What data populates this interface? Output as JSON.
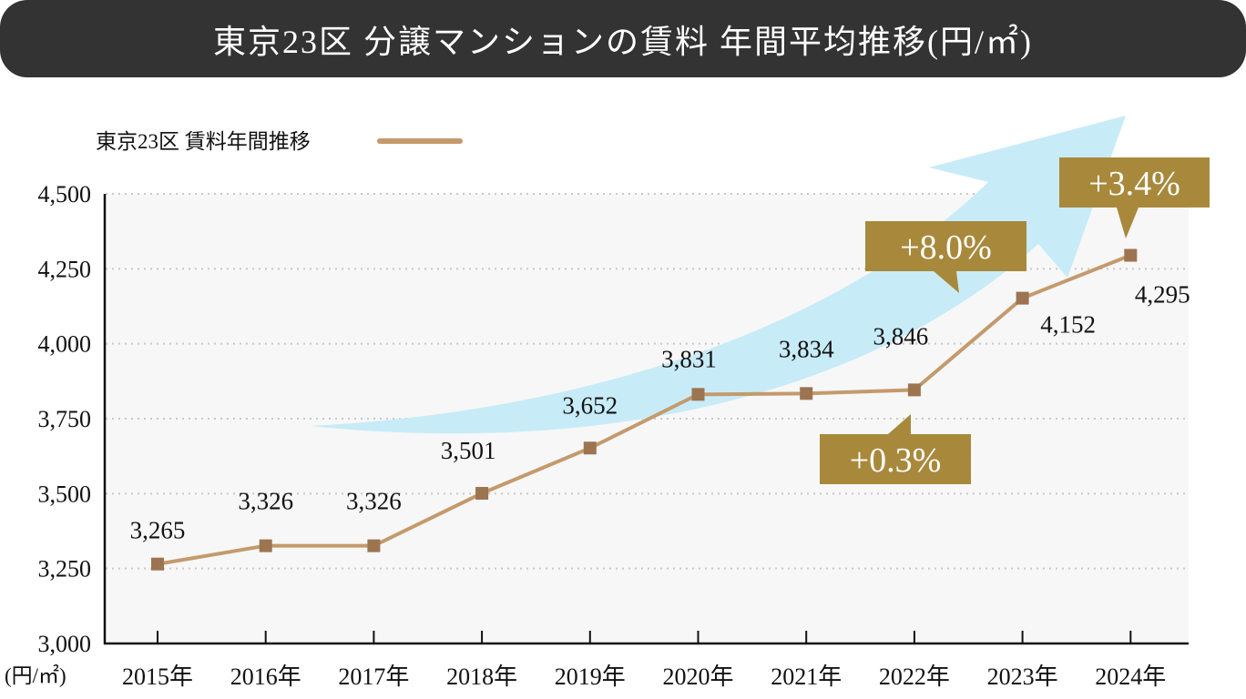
{
  "title": "東京23区 分譲マンションの賃料 年間平均推移(円/㎡)",
  "chart_data": {
    "type": "line",
    "title": "東京23区 分譲マンションの賃料 年間平均推移(円/㎡)",
    "categories": [
      "2015年",
      "2016年",
      "2017年",
      "2018年",
      "2019年",
      "2020年",
      "2021年",
      "2022年",
      "2023年",
      "2024年"
    ],
    "series": [
      {
        "name": "東京23区 賃料年間推移",
        "values": [
          3265,
          3326,
          3326,
          3501,
          3652,
          3831,
          3834,
          3846,
          4152,
          4295
        ],
        "color": "#c49a6c",
        "marker_color": "#9c7450"
      }
    ],
    "data_labels": [
      "3,265",
      "3,326",
      "3,326",
      "3,501",
      "3,652",
      "3,831",
      "3,834",
      "3,846",
      "4,152",
      "4,295"
    ],
    "ylim": [
      3000,
      4500
    ],
    "yticks": [
      3000,
      3250,
      3500,
      3750,
      4000,
      4250,
      4500
    ],
    "ytick_labels": [
      "3,000",
      "3,250",
      "3,500",
      "3,750",
      "4,000",
      "4,250",
      "4,500"
    ],
    "ylabel": "(円/㎡)",
    "xlabel": "",
    "grid": "horizontal dotted",
    "legend": "top-left",
    "annotations": [
      {
        "text": "+0.3%",
        "category": "2022年",
        "color": "#a8893c"
      },
      {
        "text": "+8.0%",
        "category": "2023年",
        "color": "#a8893c"
      },
      {
        "text": "+3.4%",
        "category": "2024年",
        "color": "#a8893c"
      }
    ],
    "trend_arrow_color": "#c8ebf8"
  }
}
